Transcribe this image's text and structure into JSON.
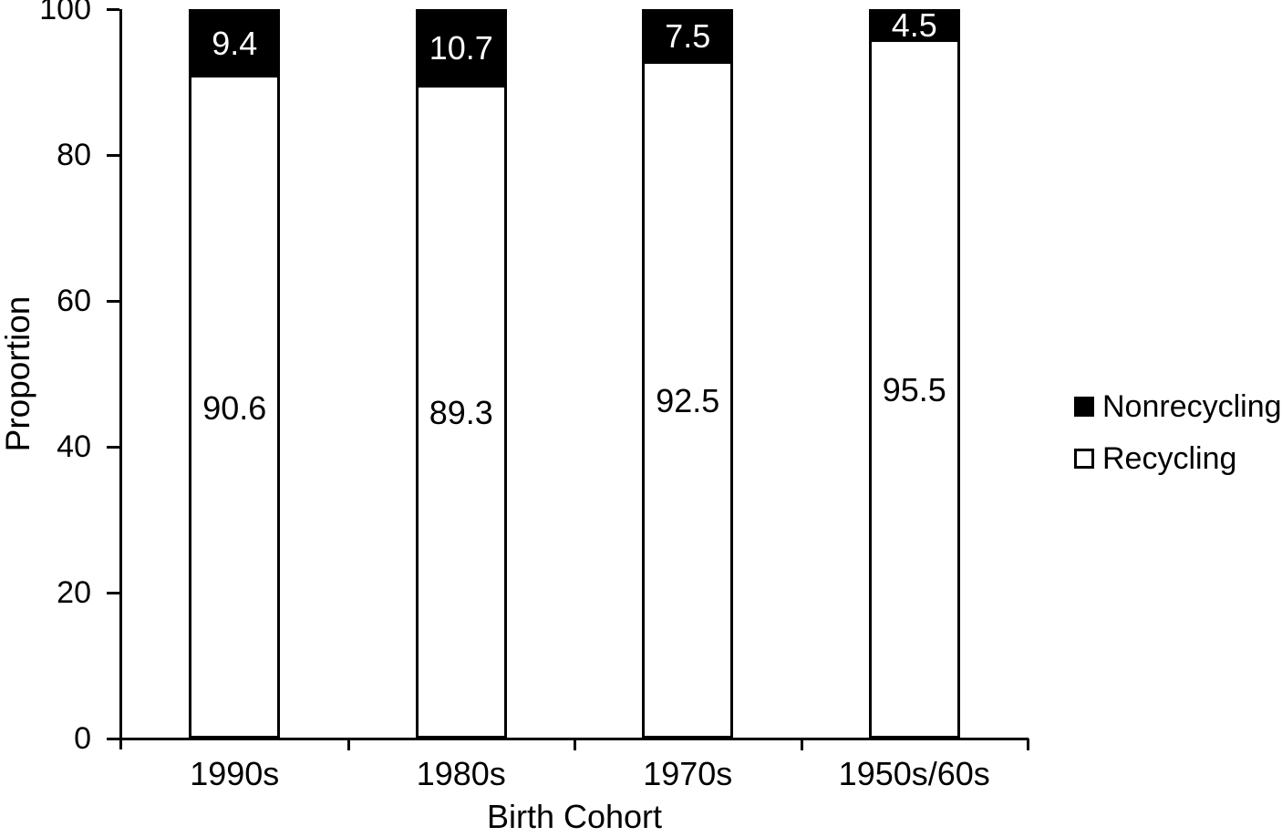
{
  "chart_data": {
    "type": "bar",
    "stacked": true,
    "title": "",
    "xlabel": "Birth Cohort",
    "ylabel": "Proportion",
    "categories": [
      "1990s",
      "1980s",
      "1970s",
      "1950s/60s"
    ],
    "series": [
      {
        "name": "Nonrecycling",
        "color": "#000000",
        "label_color": "#ffffff",
        "values": [
          9.4,
          10.7,
          7.5,
          4.5
        ]
      },
      {
        "name": "Recycling",
        "color": "#ffffff",
        "label_color": "#000000",
        "values": [
          90.6,
          89.3,
          92.5,
          95.5
        ]
      }
    ],
    "ylim": [
      0,
      100
    ],
    "yticks": [
      0,
      20,
      40,
      60,
      80,
      100
    ],
    "grid": false,
    "legend_position": "right"
  },
  "colors": {
    "axis": "#000000",
    "background": "#ffffff"
  }
}
